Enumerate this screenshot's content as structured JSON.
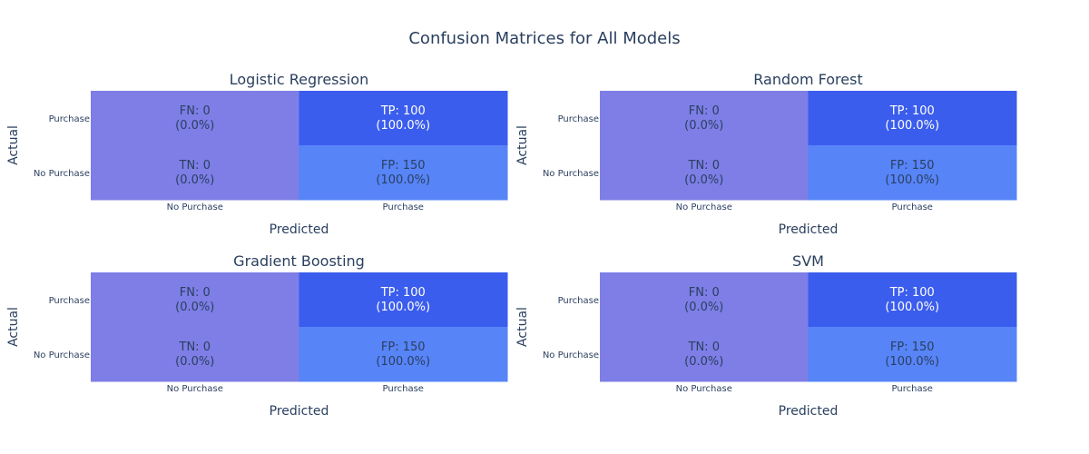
{
  "figure": {
    "title": "Confusion Matrices for All Models"
  },
  "colors": {
    "low": "#7e7ee6",
    "mid": "#5784f7",
    "high": "#3b5ded",
    "text_dark": "#2a3f5f",
    "text_light": "#ffffff"
  },
  "chart_data": [
    {
      "type": "heatmap",
      "title": "Logistic Regression",
      "xlabel": "Predicted",
      "ylabel": "Actual",
      "x_categories": [
        "No Purchase",
        "Purchase"
      ],
      "y_categories": [
        "No Purchase",
        "Purchase"
      ],
      "cells": [
        {
          "actual": "Purchase",
          "predicted": "No Purchase",
          "label": "FN",
          "value": 0,
          "percent": "0.0%",
          "color_level": "low"
        },
        {
          "actual": "Purchase",
          "predicted": "Purchase",
          "label": "TP",
          "value": 100,
          "percent": "100.0%",
          "color_level": "high"
        },
        {
          "actual": "No Purchase",
          "predicted": "No Purchase",
          "label": "TN",
          "value": 0,
          "percent": "0.0%",
          "color_level": "low"
        },
        {
          "actual": "No Purchase",
          "predicted": "Purchase",
          "label": "FP",
          "value": 150,
          "percent": "100.0%",
          "color_level": "mid"
        }
      ]
    },
    {
      "type": "heatmap",
      "title": "Random Forest",
      "xlabel": "Predicted",
      "ylabel": "Actual",
      "x_categories": [
        "No Purchase",
        "Purchase"
      ],
      "y_categories": [
        "No Purchase",
        "Purchase"
      ],
      "cells": [
        {
          "actual": "Purchase",
          "predicted": "No Purchase",
          "label": "FN",
          "value": 0,
          "percent": "0.0%",
          "color_level": "low"
        },
        {
          "actual": "Purchase",
          "predicted": "Purchase",
          "label": "TP",
          "value": 100,
          "percent": "100.0%",
          "color_level": "high"
        },
        {
          "actual": "No Purchase",
          "predicted": "No Purchase",
          "label": "TN",
          "value": 0,
          "percent": "0.0%",
          "color_level": "low"
        },
        {
          "actual": "No Purchase",
          "predicted": "Purchase",
          "label": "FP",
          "value": 150,
          "percent": "100.0%",
          "color_level": "mid"
        }
      ]
    },
    {
      "type": "heatmap",
      "title": "Gradient Boosting",
      "xlabel": "Predicted",
      "ylabel": "Actual",
      "x_categories": [
        "No Purchase",
        "Purchase"
      ],
      "y_categories": [
        "No Purchase",
        "Purchase"
      ],
      "cells": [
        {
          "actual": "Purchase",
          "predicted": "No Purchase",
          "label": "FN",
          "value": 0,
          "percent": "0.0%",
          "color_level": "low"
        },
        {
          "actual": "Purchase",
          "predicted": "Purchase",
          "label": "TP",
          "value": 100,
          "percent": "100.0%",
          "color_level": "high"
        },
        {
          "actual": "No Purchase",
          "predicted": "No Purchase",
          "label": "TN",
          "value": 0,
          "percent": "0.0%",
          "color_level": "low"
        },
        {
          "actual": "No Purchase",
          "predicted": "Purchase",
          "label": "FP",
          "value": 150,
          "percent": "100.0%",
          "color_level": "mid"
        }
      ]
    },
    {
      "type": "heatmap",
      "title": "SVM",
      "xlabel": "Predicted",
      "ylabel": "Actual",
      "x_categories": [
        "No Purchase",
        "Purchase"
      ],
      "y_categories": [
        "No Purchase",
        "Purchase"
      ],
      "cells": [
        {
          "actual": "Purchase",
          "predicted": "No Purchase",
          "label": "FN",
          "value": 0,
          "percent": "0.0%",
          "color_level": "low"
        },
        {
          "actual": "Purchase",
          "predicted": "Purchase",
          "label": "TP",
          "value": 100,
          "percent": "100.0%",
          "color_level": "high"
        },
        {
          "actual": "No Purchase",
          "predicted": "No Purchase",
          "label": "TN",
          "value": 0,
          "percent": "0.0%",
          "color_level": "low"
        },
        {
          "actual": "No Purchase",
          "predicted": "Purchase",
          "label": "FP",
          "value": 150,
          "percent": "100.0%",
          "color_level": "mid"
        }
      ]
    }
  ]
}
